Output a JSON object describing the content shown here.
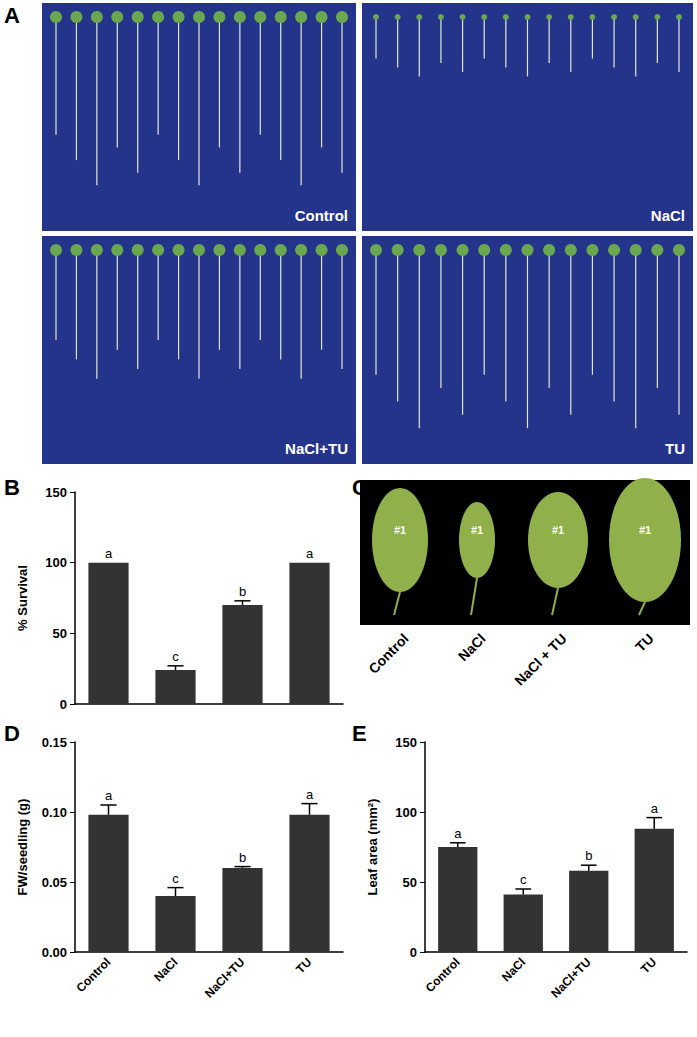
{
  "photo_panels": [
    {
      "title": "A",
      "labels": [
        "Control",
        "NaCl",
        "NaCl+TU",
        "TU"
      ]
    },
    {
      "title": "C",
      "leaf_labels": [
        "#1",
        "#1",
        "#1",
        "#1"
      ],
      "labels": [
        "Control",
        "NaCl",
        "NaCl + TU",
        "TU"
      ]
    }
  ],
  "chart_data": [
    {
      "type": "bar",
      "title": "B",
      "y_label": "% Survival",
      "categories": [
        null,
        null,
        null,
        null
      ],
      "values": [
        100,
        24,
        70,
        100
      ],
      "errors": [
        0,
        3,
        3,
        0
      ],
      "annotations": [
        "a",
        "c",
        "b",
        "a"
      ],
      "color": "#333333",
      "ylim": [
        0,
        150
      ],
      "yticks": [
        0,
        50,
        100,
        150
      ],
      "grid": false,
      "tick_labels": "y"
    },
    {
      "type": "bar",
      "title": "D",
      "y_label": "FW/seedling (g)",
      "categories": [
        "Control",
        "NaCl",
        "NaCl+TU",
        "TU"
      ],
      "values": [
        0.098,
        0.04,
        0.06,
        0.098
      ],
      "errors": [
        0.007,
        0.006,
        0.001,
        0.008
      ],
      "annotations": [
        "a",
        "c",
        "b",
        "a"
      ],
      "color": "#333333",
      "ylim": [
        0,
        0.15
      ],
      "yticks": [
        {
          "value": 0,
          "label": "0.00"
        },
        {
          "value": 0.05,
          "label": "0.05"
        },
        {
          "value": 0.1,
          "label": "0.10"
        },
        {
          "value": 0.15,
          "label": "0.15"
        }
      ],
      "grid": false,
      "tick_labels": true
    },
    {
      "type": "bar",
      "title": "E",
      "y_label": "Leaf area (mm²)",
      "categories": [
        "Control",
        "NaCl",
        "NaCl+TU",
        "TU"
      ],
      "values": [
        75,
        41,
        58,
        88
      ],
      "errors": [
        3,
        4,
        4,
        8
      ],
      "annotations": [
        "a",
        "c",
        "b",
        "a"
      ],
      "color": "#333333",
      "ylim": [
        0,
        150
      ],
      "yticks": [
        0,
        50,
        100,
        150
      ],
      "grid": false,
      "tick_labels": true
    }
  ]
}
